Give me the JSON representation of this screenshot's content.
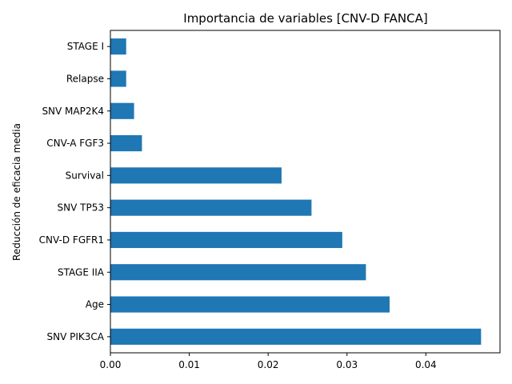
{
  "chart_data": {
    "type": "bar",
    "orientation": "horizontal",
    "title": "Importancia de variables [CNV-D FANCA]",
    "xlabel": "",
    "ylabel": "Reducción de eficacia media",
    "categories": [
      "SNV PIK3CA",
      "Age",
      "STAGE IIA",
      "CNV-D FGFR1",
      "SNV TP53",
      "Survival",
      "CNV-A FGF3",
      "SNV MAP2K4",
      "Relapse",
      "STAGE I"
    ],
    "values": [
      0.047,
      0.0354,
      0.0324,
      0.0294,
      0.0255,
      0.0217,
      0.004,
      0.003,
      0.002,
      0.002
    ],
    "xlim": [
      0,
      0.0494
    ],
    "xticks": [
      0,
      0.01,
      0.02,
      0.03,
      0.04
    ],
    "xtick_labels": [
      "0.00",
      "0.01",
      "0.02",
      "0.03",
      "0.04"
    ],
    "bar_color": "#1f77b4",
    "grid": false,
    "legend": "none"
  }
}
